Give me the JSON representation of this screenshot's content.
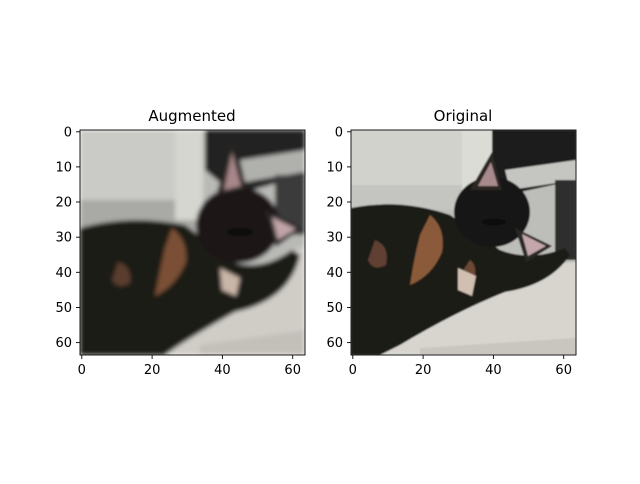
{
  "figure": {
    "panels": [
      {
        "title": "Augmented",
        "image_subject": "tortoiseshell-cat-lying-on-cushion",
        "x_ticks": [
          "0",
          "20",
          "40",
          "60"
        ],
        "y_ticks": [
          "0",
          "10",
          "20",
          "30",
          "40",
          "50",
          "60"
        ]
      },
      {
        "title": "Original",
        "image_subject": "tortoiseshell-cat-lying-on-cushion",
        "x_ticks": [
          "0",
          "20",
          "40",
          "60"
        ],
        "y_ticks": [
          "0",
          "10",
          "20",
          "30",
          "40",
          "50",
          "60"
        ]
      }
    ]
  }
}
